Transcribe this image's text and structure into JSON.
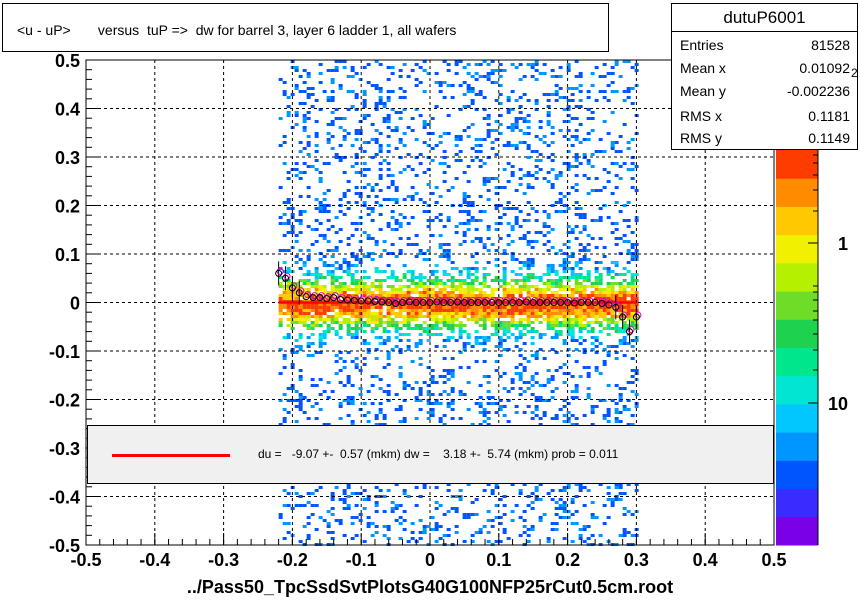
{
  "title": "<u - uP>       versus  tuP =>  dw for barrel 3, layer 6 ladder 1, all wafers",
  "stats": {
    "name": "dutuP6001",
    "rows": [
      {
        "label": "Entries",
        "value": "81528"
      },
      {
        "label": "Mean x",
        "value": "0.01092"
      },
      {
        "label": "Mean y",
        "value": "-0.002236"
      },
      {
        "label": "RMS x",
        "value": "0.1181"
      },
      {
        "label": "RMS y",
        "value": "0.1149"
      }
    ]
  },
  "fit_text": "du =   -9.07 +-  0.57 (mkm) dw =    3.18 +-  5.74 (mkm) prob = 0.011",
  "xlabel": "../Pass50_TpcSsdSvtPlotsG40G100NFP25rCut0.5cm.root",
  "palette_labels": [
    "10",
    "1"
  ],
  "palette_exponent": "2",
  "colors": {
    "fit_line": "#ff0000",
    "profile_marker": "#000000",
    "profile_marker_alt": "#cc00cc"
  },
  "chart_data": {
    "type": "heatmap",
    "title": "<u - uP>       versus  tuP =>  dw for barrel 3, layer 6 ladder 1, all wafers",
    "xlabel": "../Pass50_TpcSsdSvtPlotsG40G100NFP25rCut0.5cm.root",
    "xlim": [
      -0.5,
      0.5
    ],
    "ylim": [
      -0.5,
      0.5
    ],
    "x_ticks": [
      "-0.5",
      "-0.4",
      "-0.3",
      "-0.2",
      "-0.1",
      "0",
      "0.1",
      "0.2",
      "0.3",
      "0.4",
      "0.5"
    ],
    "y_ticks": [
      "0.5",
      "0.4",
      "0.3",
      "0.2",
      "0.1",
      "0",
      "-0.1",
      "-0.2",
      "-0.3",
      "-0.4",
      "-0.5"
    ],
    "grid": true,
    "log_z": true,
    "data_x_range": [
      -0.22,
      0.3
    ],
    "fit_line": {
      "x": [
        -0.22,
        0.3
      ],
      "y": [
        0.0,
        0.0
      ]
    },
    "profile_points": {
      "x": [
        -0.22,
        -0.21,
        -0.2,
        -0.19,
        -0.18,
        -0.17,
        -0.16,
        -0.15,
        -0.14,
        -0.13,
        -0.12,
        -0.11,
        -0.1,
        -0.09,
        -0.08,
        -0.07,
        -0.06,
        -0.05,
        -0.04,
        -0.03,
        -0.02,
        -0.01,
        0.0,
        0.01,
        0.02,
        0.03,
        0.04,
        0.05,
        0.06,
        0.07,
        0.08,
        0.09,
        0.1,
        0.11,
        0.12,
        0.13,
        0.14,
        0.15,
        0.16,
        0.17,
        0.18,
        0.19,
        0.2,
        0.21,
        0.22,
        0.23,
        0.24,
        0.25,
        0.26,
        0.27,
        0.28,
        0.29,
        0.3
      ],
      "y": [
        0.06,
        0.05,
        0.03,
        0.02,
        0.012,
        0.01,
        0.01,
        0.008,
        0.01,
        0.006,
        0.005,
        0.004,
        0.003,
        0.003,
        0.002,
        0.001,
        0.0,
        -0.002,
        0.0,
        0.001,
        0.0,
        0.0,
        0.0,
        0.001,
        0.0,
        0.0,
        0.001,
        0.0,
        0.0,
        0.0,
        0.0,
        0.0,
        0.0,
        0.0,
        0.0,
        0.0,
        0.001,
        0.0,
        0.0,
        0.0,
        0.0,
        0.0,
        0.0,
        -0.001,
        0.0,
        0.0,
        0.0,
        -0.002,
        -0.005,
        -0.01,
        -0.03,
        -0.06,
        -0.03
      ]
    }
  }
}
